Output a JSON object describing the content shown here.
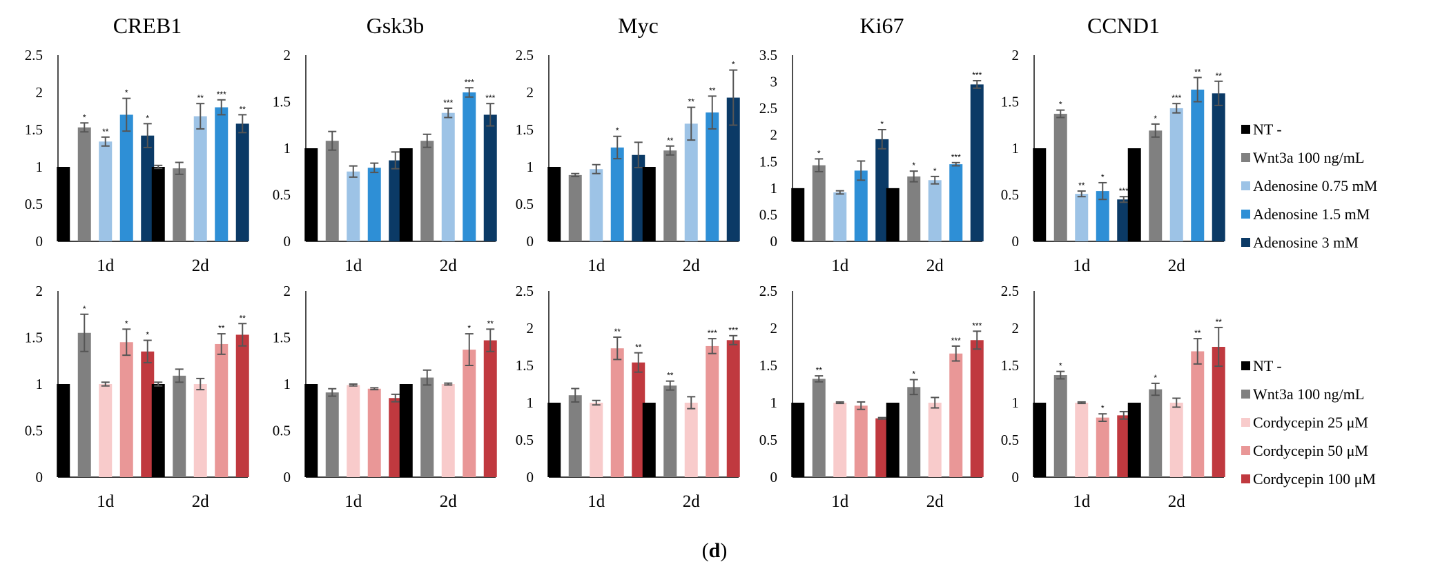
{
  "figure_label": "(d)",
  "figure_label_letter": "d",
  "colors": {
    "NT": "#000000",
    "Wnt3a": "#808080",
    "Adenosine_0_75": "#9DC3E6",
    "Adenosine_1_5": "#2E8FD6",
    "Adenosine_3": "#0B3A66",
    "Cordycepin_25": "#F8CBCB",
    "Cordycepin_50": "#E99797",
    "Cordycepin_100": "#C0393F",
    "error_bar": "#555555"
  },
  "legends": [
    {
      "items": [
        {
          "label": "NT -",
          "color_key": "NT"
        },
        {
          "label": "Wnt3a 100 ng/mL",
          "color_key": "Wnt3a"
        },
        {
          "label": "Adenosine 0.75 mM",
          "color_key": "Adenosine_0_75"
        },
        {
          "label": "Adenosine 1.5 mM",
          "color_key": "Adenosine_1_5"
        },
        {
          "label": "Adenosine 3 mM",
          "color_key": "Adenosine_3"
        }
      ]
    },
    {
      "items": [
        {
          "label": "NT -",
          "color_key": "NT"
        },
        {
          "label": "Wnt3a 100 ng/mL",
          "color_key": "Wnt3a"
        },
        {
          "label": "Cordycepin 25 μM",
          "color_key": "Cordycepin_25"
        },
        {
          "label": "Cordycepin 50 μM",
          "color_key": "Cordycepin_50"
        },
        {
          "label": "Cordycepin 100 μM",
          "color_key": "Cordycepin_100"
        }
      ]
    }
  ],
  "chart_data": [
    {
      "type": "bar",
      "title": "CREB1",
      "row": 0,
      "col": 0,
      "categories": [
        "1d",
        "2d"
      ],
      "ylim": [
        0,
        2.5
      ],
      "yticks": [
        "0",
        "0.5",
        "1",
        "1.5",
        "2",
        "2.5"
      ],
      "grid": false,
      "series": [
        {
          "name": "NT -",
          "color_key": "NT",
          "values": [
            1,
            1
          ],
          "errors": [
            0,
            0.02
          ],
          "sig": [
            "",
            ""
          ]
        },
        {
          "name": "Wnt3a 100 ng/mL",
          "color_key": "Wnt3a",
          "values": [
            1.53,
            0.98
          ],
          "errors": [
            0.06,
            0.08
          ],
          "sig": [
            "*",
            ""
          ]
        },
        {
          "name": "Adenosine 0.75 mM",
          "color_key": "Adenosine_0_75",
          "values": [
            1.34,
            1.68
          ],
          "errors": [
            0.06,
            0.17
          ],
          "sig": [
            "**",
            "**"
          ]
        },
        {
          "name": "Adenosine 1.5 mM",
          "color_key": "Adenosine_1_5",
          "values": [
            1.7,
            1.8
          ],
          "errors": [
            0.22,
            0.1
          ],
          "sig": [
            "*",
            "***"
          ]
        },
        {
          "name": "Adenosine 3 mM",
          "color_key": "Adenosine_3",
          "values": [
            1.42,
            1.58
          ],
          "errors": [
            0.16,
            0.12
          ],
          "sig": [
            "*",
            "**"
          ]
        }
      ]
    },
    {
      "type": "bar",
      "title": "Gsk3b",
      "row": 0,
      "col": 1,
      "categories": [
        "1d",
        "2d"
      ],
      "ylim": [
        0,
        2
      ],
      "yticks": [
        "0",
        "0.5",
        "1",
        "1.5",
        "2"
      ],
      "grid": false,
      "series": [
        {
          "name": "NT -",
          "color_key": "NT",
          "values": [
            1,
            1
          ],
          "errors": [
            0,
            0
          ],
          "sig": [
            "",
            ""
          ]
        },
        {
          "name": "Wnt3a 100 ng/mL",
          "color_key": "Wnt3a",
          "values": [
            1.08,
            1.08
          ],
          "errors": [
            0.1,
            0.07
          ],
          "sig": [
            "",
            ""
          ]
        },
        {
          "name": "Adenosine 0.75 mM",
          "color_key": "Adenosine_0_75",
          "values": [
            0.75,
            1.38
          ],
          "errors": [
            0.06,
            0.05
          ],
          "sig": [
            "",
            "***"
          ]
        },
        {
          "name": "Adenosine 1.5 mM",
          "color_key": "Adenosine_1_5",
          "values": [
            0.79,
            1.6
          ],
          "errors": [
            0.05,
            0.05
          ],
          "sig": [
            "",
            "***"
          ]
        },
        {
          "name": "Adenosine 3 mM",
          "color_key": "Adenosine_3",
          "values": [
            0.87,
            1.36
          ],
          "errors": [
            0.09,
            0.12
          ],
          "sig": [
            "",
            "***"
          ]
        }
      ]
    },
    {
      "type": "bar",
      "title": "Myc",
      "row": 0,
      "col": 2,
      "categories": [
        "1d",
        "2d"
      ],
      "ylim": [
        0,
        2.5
      ],
      "yticks": [
        "0",
        "0.5",
        "1",
        "1.5",
        "2",
        "2.5"
      ],
      "grid": false,
      "series": [
        {
          "name": "NT -",
          "color_key": "NT",
          "values": [
            1,
            1
          ],
          "errors": [
            0,
            0
          ],
          "sig": [
            "",
            ""
          ]
        },
        {
          "name": "Wnt3a 100 ng/mL",
          "color_key": "Wnt3a",
          "values": [
            0.89,
            1.22
          ],
          "errors": [
            0.02,
            0.06
          ],
          "sig": [
            "",
            "**"
          ]
        },
        {
          "name": "Adenosine 0.75 mM",
          "color_key": "Adenosine_0_75",
          "values": [
            0.97,
            1.58
          ],
          "errors": [
            0.06,
            0.22
          ],
          "sig": [
            "",
            "**"
          ]
        },
        {
          "name": "Adenosine 1.5 mM",
          "color_key": "Adenosine_1_5",
          "values": [
            1.26,
            1.73
          ],
          "errors": [
            0.15,
            0.22
          ],
          "sig": [
            "*",
            "**"
          ]
        },
        {
          "name": "Adenosine 3 mM",
          "color_key": "Adenosine_3",
          "values": [
            1.16,
            1.93
          ],
          "errors": [
            0.17,
            0.37
          ],
          "sig": [
            "",
            "*"
          ]
        }
      ]
    },
    {
      "type": "bar",
      "title": "Ki67",
      "row": 0,
      "col": 3,
      "categories": [
        "1d",
        "2d"
      ],
      "ylim": [
        0,
        3.5
      ],
      "yticks": [
        "0",
        "0.5",
        "1",
        "1.5",
        "2",
        "2.5",
        "3",
        "3.5"
      ],
      "grid": false,
      "series": [
        {
          "name": "NT -",
          "color_key": "NT",
          "values": [
            1,
            1
          ],
          "errors": [
            0,
            0
          ],
          "sig": [
            "",
            ""
          ]
        },
        {
          "name": "Wnt3a 100 ng/mL",
          "color_key": "Wnt3a",
          "values": [
            1.43,
            1.22
          ],
          "errors": [
            0.12,
            0.1
          ],
          "sig": [
            "*",
            "*"
          ]
        },
        {
          "name": "Adenosine 0.75 mM",
          "color_key": "Adenosine_0_75",
          "values": [
            0.92,
            1.15
          ],
          "errors": [
            0.03,
            0.07
          ],
          "sig": [
            "",
            "*"
          ]
        },
        {
          "name": "Adenosine 1.5 mM",
          "color_key": "Adenosine_1_5",
          "values": [
            1.33,
            1.45
          ],
          "errors": [
            0.18,
            0.03
          ],
          "sig": [
            "",
            "***"
          ]
        },
        {
          "name": "Adenosine 3 mM",
          "color_key": "Adenosine_3",
          "values": [
            1.92,
            2.95
          ],
          "errors": [
            0.18,
            0.07
          ],
          "sig": [
            "*",
            "***"
          ]
        }
      ]
    },
    {
      "type": "bar",
      "title": "CCND1",
      "row": 0,
      "col": 4,
      "categories": [
        "1d",
        "2d"
      ],
      "ylim": [
        0,
        2
      ],
      "yticks": [
        "0",
        "0.5",
        "1",
        "1.5",
        "2"
      ],
      "grid": false,
      "series": [
        {
          "name": "NT -",
          "color_key": "NT",
          "values": [
            1,
            1
          ],
          "errors": [
            0,
            0
          ],
          "sig": [
            "",
            ""
          ]
        },
        {
          "name": "Wnt3a 100 ng/mL",
          "color_key": "Wnt3a",
          "values": [
            1.37,
            1.19
          ],
          "errors": [
            0.04,
            0.07
          ],
          "sig": [
            "*",
            "*"
          ]
        },
        {
          "name": "Adenosine 0.75 mM",
          "color_key": "Adenosine_0_75",
          "values": [
            0.51,
            1.43
          ],
          "errors": [
            0.03,
            0.05
          ],
          "sig": [
            "**",
            "***"
          ]
        },
        {
          "name": "Adenosine 1.5 mM",
          "color_key": "Adenosine_1_5",
          "values": [
            0.54,
            1.63
          ],
          "errors": [
            0.09,
            0.13
          ],
          "sig": [
            "*",
            "**"
          ]
        },
        {
          "name": "Adenosine 3 mM",
          "color_key": "Adenosine_3",
          "values": [
            0.45,
            1.59
          ],
          "errors": [
            0.03,
            0.13
          ],
          "sig": [
            "***",
            "**"
          ]
        }
      ]
    },
    {
      "type": "bar",
      "title": "",
      "row": 1,
      "col": 0,
      "categories": [
        "1d",
        "2d"
      ],
      "ylim": [
        0,
        2
      ],
      "yticks": [
        "0",
        "0.5",
        "1",
        "1.5",
        "2"
      ],
      "grid": false,
      "series": [
        {
          "name": "NT -",
          "color_key": "NT",
          "values": [
            1,
            1
          ],
          "errors": [
            0,
            0.02
          ],
          "sig": [
            "",
            ""
          ]
        },
        {
          "name": "Wnt3a 100 ng/mL",
          "color_key": "Wnt3a",
          "values": [
            1.55,
            1.09
          ],
          "errors": [
            0.2,
            0.07
          ],
          "sig": [
            "*",
            ""
          ]
        },
        {
          "name": "Cordycepin 25 μM",
          "color_key": "Cordycepin_25",
          "values": [
            1.0,
            1.0
          ],
          "errors": [
            0.02,
            0.06
          ],
          "sig": [
            "",
            ""
          ]
        },
        {
          "name": "Cordycepin 50 μM",
          "color_key": "Cordycepin_50",
          "values": [
            1.45,
            1.43
          ],
          "errors": [
            0.14,
            0.11
          ],
          "sig": [
            "*",
            "**"
          ]
        },
        {
          "name": "Cordycepin 100 μM",
          "color_key": "Cordycepin_100",
          "values": [
            1.35,
            1.53
          ],
          "errors": [
            0.12,
            0.12
          ],
          "sig": [
            "*",
            "**"
          ]
        }
      ]
    },
    {
      "type": "bar",
      "title": "",
      "row": 1,
      "col": 1,
      "categories": [
        "1d",
        "2d"
      ],
      "ylim": [
        0,
        2
      ],
      "yticks": [
        "0",
        "0.5",
        "1",
        "1.5",
        "2"
      ],
      "grid": false,
      "series": [
        {
          "name": "NT -",
          "color_key": "NT",
          "values": [
            1,
            1
          ],
          "errors": [
            0,
            0
          ],
          "sig": [
            "",
            ""
          ]
        },
        {
          "name": "Wnt3a 100 ng/mL",
          "color_key": "Wnt3a",
          "values": [
            0.91,
            1.07
          ],
          "errors": [
            0.04,
            0.08
          ],
          "sig": [
            "",
            ""
          ]
        },
        {
          "name": "Cordycepin 25 μM",
          "color_key": "Cordycepin_25",
          "values": [
            0.99,
            1.0
          ],
          "errors": [
            0.01,
            0.01
          ],
          "sig": [
            "",
            ""
          ]
        },
        {
          "name": "Cordycepin 50 μM",
          "color_key": "Cordycepin_50",
          "values": [
            0.95,
            1.37
          ],
          "errors": [
            0.01,
            0.17
          ],
          "sig": [
            "",
            "*"
          ]
        },
        {
          "name": "Cordycepin 100 μM",
          "color_key": "Cordycepin_100",
          "values": [
            0.85,
            1.47
          ],
          "errors": [
            0.04,
            0.12
          ],
          "sig": [
            "",
            "**"
          ]
        }
      ]
    },
    {
      "type": "bar",
      "title": "",
      "row": 1,
      "col": 2,
      "categories": [
        "1d",
        "2d"
      ],
      "ylim": [
        0,
        2.5
      ],
      "yticks": [
        "0",
        "0.5",
        "1",
        "1.5",
        "2",
        "2.5"
      ],
      "grid": false,
      "series": [
        {
          "name": "NT -",
          "color_key": "NT",
          "values": [
            1,
            1
          ],
          "errors": [
            0,
            0
          ],
          "sig": [
            "",
            ""
          ]
        },
        {
          "name": "Wnt3a 100 ng/mL",
          "color_key": "Wnt3a",
          "values": [
            1.1,
            1.23
          ],
          "errors": [
            0.09,
            0.06
          ],
          "sig": [
            "",
            "**"
          ]
        },
        {
          "name": "Cordycepin 25 μM",
          "color_key": "Cordycepin_25",
          "values": [
            1.0,
            1.0
          ],
          "errors": [
            0.03,
            0.08
          ],
          "sig": [
            "",
            ""
          ]
        },
        {
          "name": "Cordycepin 50 μM",
          "color_key": "Cordycepin_50",
          "values": [
            1.73,
            1.76
          ],
          "errors": [
            0.15,
            0.1
          ],
          "sig": [
            "**",
            "***"
          ]
        },
        {
          "name": "Cordycepin 100 μM",
          "color_key": "Cordycepin_100",
          "values": [
            1.54,
            1.84
          ],
          "errors": [
            0.13,
            0.06
          ],
          "sig": [
            "**",
            "***"
          ]
        }
      ]
    },
    {
      "type": "bar",
      "title": "",
      "row": 1,
      "col": 3,
      "categories": [
        "1d",
        "2d"
      ],
      "ylim": [
        0,
        2.5
      ],
      "yticks": [
        "0",
        "0.5",
        "1",
        "1.5",
        "2",
        "2.5"
      ],
      "grid": false,
      "series": [
        {
          "name": "NT -",
          "color_key": "NT",
          "values": [
            1,
            1
          ],
          "errors": [
            0,
            0
          ],
          "sig": [
            "",
            ""
          ]
        },
        {
          "name": "Wnt3a 100 ng/mL",
          "color_key": "Wnt3a",
          "values": [
            1.32,
            1.21
          ],
          "errors": [
            0.04,
            0.1
          ],
          "sig": [
            "**",
            "*"
          ]
        },
        {
          "name": "Cordycepin 25 μM",
          "color_key": "Cordycepin_25",
          "values": [
            1.0,
            1.0
          ],
          "errors": [
            0.01,
            0.07
          ],
          "sig": [
            "",
            ""
          ]
        },
        {
          "name": "Cordycepin 50 μM",
          "color_key": "Cordycepin_50",
          "values": [
            0.96,
            1.66
          ],
          "errors": [
            0.05,
            0.1
          ],
          "sig": [
            "",
            "***"
          ]
        },
        {
          "name": "Cordycepin 100 μM",
          "color_key": "Cordycepin_100",
          "values": [
            0.79,
            1.84
          ],
          "errors": [
            0.01,
            0.12
          ],
          "sig": [
            "",
            "***"
          ]
        }
      ]
    },
    {
      "type": "bar",
      "title": "",
      "row": 1,
      "col": 4,
      "categories": [
        "1d",
        "2d"
      ],
      "ylim": [
        0,
        2.5
      ],
      "yticks": [
        "0",
        "0.5",
        "1",
        "1.5",
        "2",
        "2.5"
      ],
      "grid": false,
      "series": [
        {
          "name": "NT -",
          "color_key": "NT",
          "values": [
            1,
            1
          ],
          "errors": [
            0,
            0
          ],
          "sig": [
            "",
            ""
          ]
        },
        {
          "name": "Wnt3a 100 ng/mL",
          "color_key": "Wnt3a",
          "values": [
            1.37,
            1.18
          ],
          "errors": [
            0.05,
            0.08
          ],
          "sig": [
            "*",
            "*"
          ]
        },
        {
          "name": "Cordycepin 25 μM",
          "color_key": "Cordycepin_25",
          "values": [
            1.0,
            1.0
          ],
          "errors": [
            0.01,
            0.06
          ],
          "sig": [
            "",
            ""
          ]
        },
        {
          "name": "Cordycepin 50 μM",
          "color_key": "Cordycepin_50",
          "values": [
            0.8,
            1.69
          ],
          "errors": [
            0.05,
            0.17
          ],
          "sig": [
            "*",
            "**"
          ]
        },
        {
          "name": "Cordycepin 100 μM",
          "color_key": "Cordycepin_100",
          "values": [
            0.83,
            1.75
          ],
          "errors": [
            0.05,
            0.26
          ],
          "sig": [
            "",
            "**"
          ]
        }
      ]
    }
  ]
}
